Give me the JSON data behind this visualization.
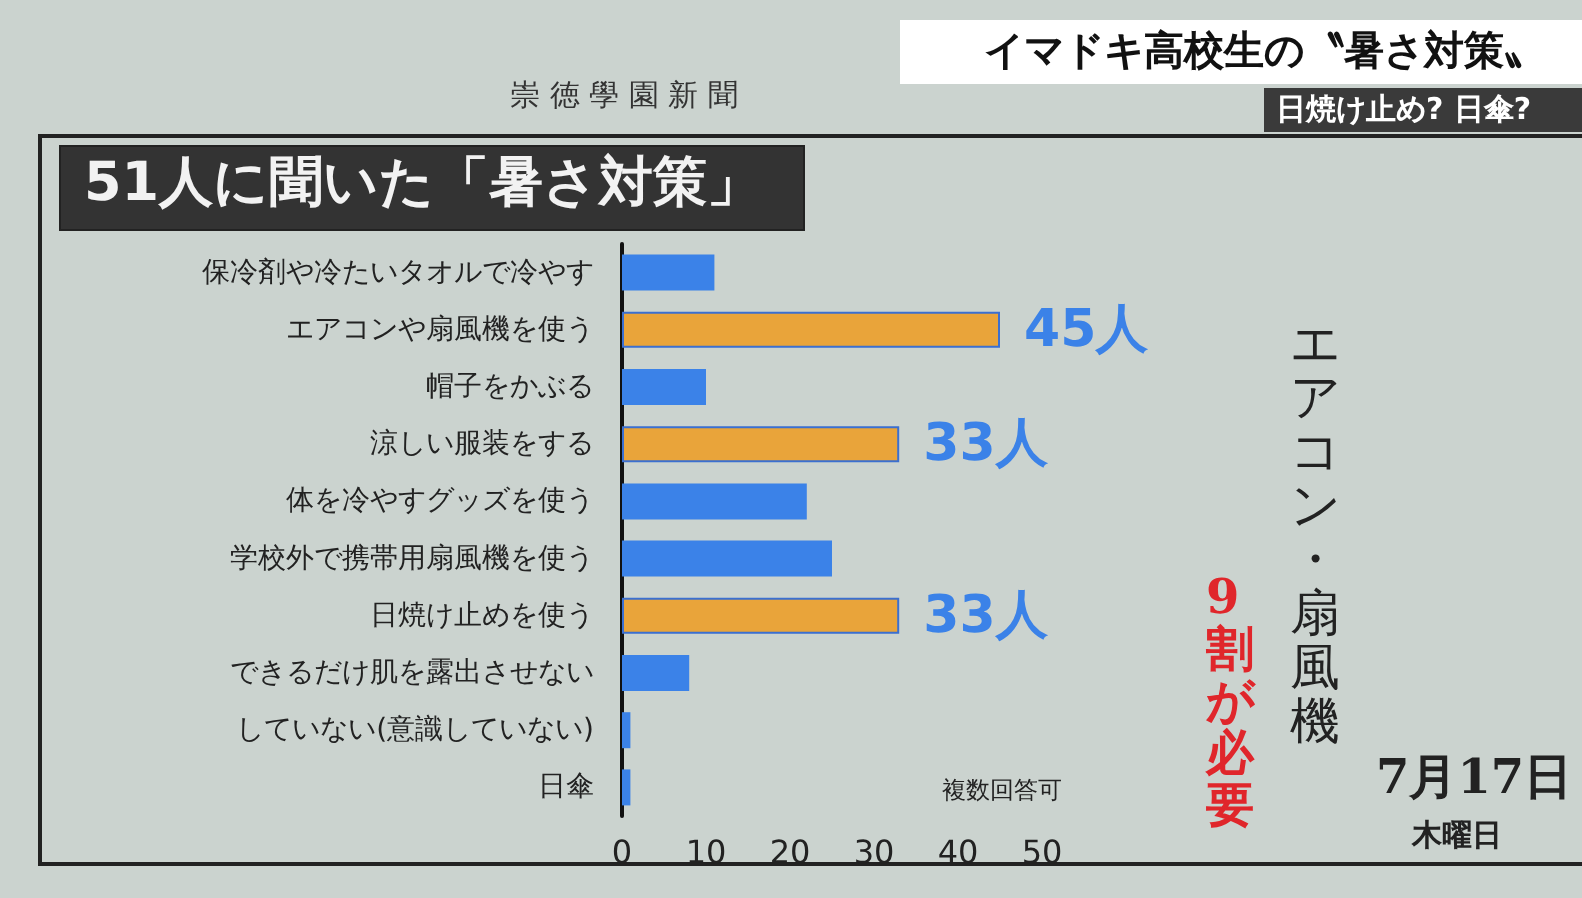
{
  "chart_data": {
    "type": "bar",
    "orientation": "horizontal",
    "title": "51人に聞いた「暑さ対策」",
    "subtitle": "イマドキ高校生の〝暑さ対策〟",
    "categories": [
      "保冷剤や冷たいタオルで冷やす",
      "エアコンや扇風機を使う",
      "帽子をかぶる",
      "涼しい服装をする",
      "体を冷やすグッズを使う",
      "学校外で携帯用扇風機を使う",
      "日焼け止めを使う",
      "できるだけ肌を露出させない",
      "していない(意識していない)",
      "日傘"
    ],
    "values": [
      11,
      45,
      10,
      33,
      22,
      25,
      33,
      8,
      1,
      1
    ],
    "colors": [
      "#3b82e8",
      "#e9a43a",
      "#3b82e8",
      "#e9a43a",
      "#3b82e8",
      "#3b82e8",
      "#e9a43a",
      "#3b82e8",
      "#3b82e8",
      "#3b82e8"
    ],
    "value_labels": [
      null,
      "45人",
      null,
      "33人",
      null,
      null,
      "33人",
      null,
      null,
      null
    ],
    "xlim": [
      0,
      50
    ],
    "xticks": [
      0,
      10,
      20,
      30,
      40,
      50
    ],
    "grid": false,
    "annotations": [
      "日焼け止め? 日傘?",
      "崇 徳 學 園 新 聞",
      "複数回答可",
      "エアコン・扇風機",
      "9割が必要",
      "7月17日",
      "木曜日"
    ]
  }
}
